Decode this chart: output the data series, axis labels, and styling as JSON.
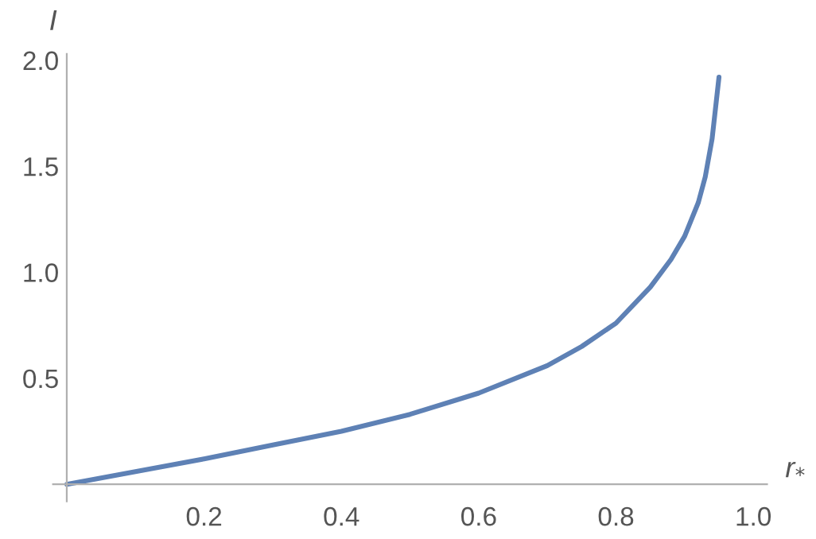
{
  "chart_data": {
    "type": "line",
    "xlabel": "r$_{*}$",
    "ylabel": "I",
    "x": [
      0,
      0.1,
      0.2,
      0.3,
      0.4,
      0.5,
      0.6,
      0.7,
      0.75,
      0.8,
      0.85,
      0.88,
      0.9,
      0.92,
      0.93,
      0.94,
      0.95
    ],
    "series": [
      {
        "color": "#5e81b5",
        "values": [
          0,
          0.06,
          0.12,
          0.185,
          0.25,
          0.33,
          0.43,
          0.56,
          0.65,
          0.76,
          0.93,
          1.06,
          1.17,
          1.33,
          1.45,
          1.63,
          1.92
        ]
      }
    ],
    "xlim": [
      -0.02,
      1.02
    ],
    "ylim": [
      -0.08,
      2.03
    ],
    "xticks": [
      0.2,
      0.4,
      0.6,
      0.8,
      {
        "value": 1,
        "label": "1.0"
      }
    ],
    "yticks": [
      0.5,
      {
        "value": 1,
        "label": "1.0"
      },
      1.5,
      {
        "value": 2,
        "label": "2.0"
      }
    ],
    "grid": false,
    "legend": false,
    "marker": "none",
    "line_style": "solid"
  }
}
